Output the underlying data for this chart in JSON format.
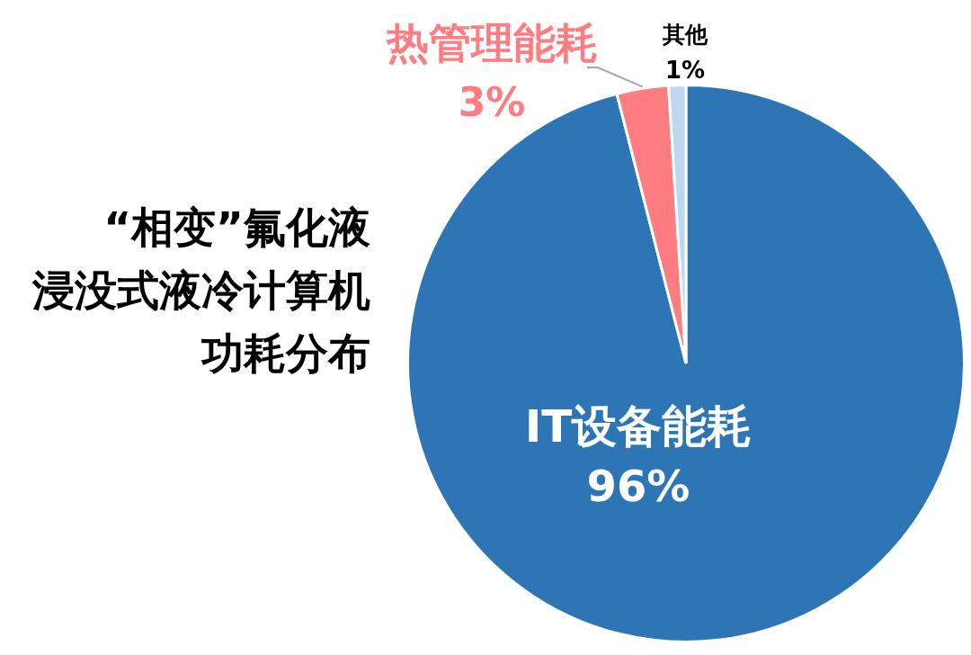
{
  "chart_data": {
    "type": "pie",
    "title": "“相变”氟化液浸没式液冷计算机功耗分布",
    "categories": [
      "IT设备能耗",
      "热管理能耗",
      "其他"
    ],
    "values": [
      96,
      3,
      1
    ],
    "colors": [
      "#2e75b6",
      "#ff7c80",
      "#bdd7ee"
    ],
    "value_labels": [
      "96%",
      "3%",
      "1%"
    ]
  }
}
